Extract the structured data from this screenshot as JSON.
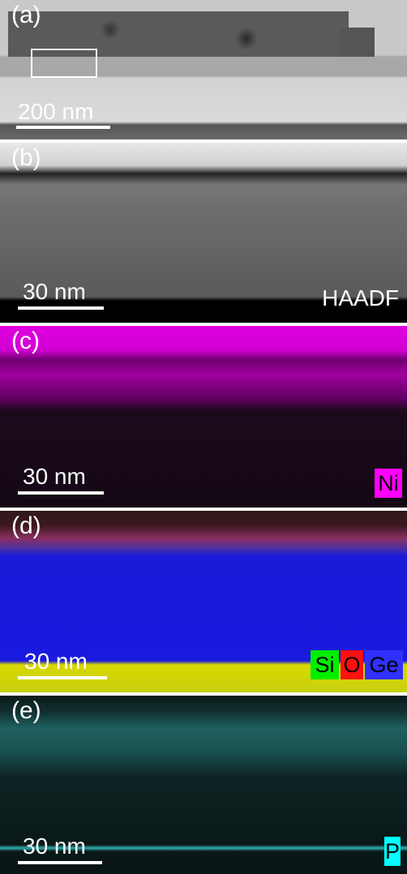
{
  "panels": [
    {
      "label": "(a)",
      "scale_bar": "200 nm"
    },
    {
      "label": "(b)",
      "scale_bar": "30 nm",
      "channels": [
        "HAADF"
      ]
    },
    {
      "label": "(c)",
      "scale_bar": "30 nm",
      "channels": [
        "Ni"
      ]
    },
    {
      "label": "(d)",
      "scale_bar": "30 nm",
      "channels": [
        "Si",
        "O",
        "Ge"
      ]
    },
    {
      "label": "(e)",
      "scale_bar": "30 nm",
      "channels": [
        "P"
      ]
    }
  ]
}
